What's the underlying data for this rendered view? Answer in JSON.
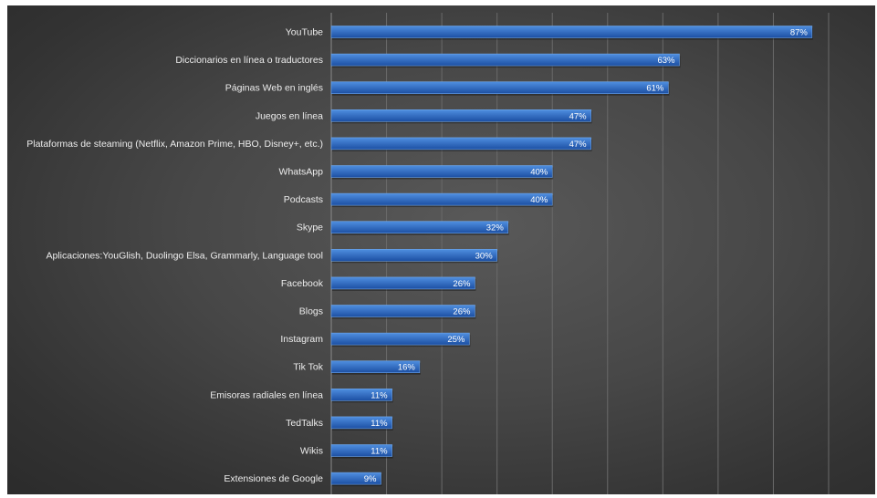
{
  "chart_data": {
    "type": "bar",
    "orientation": "horizontal",
    "categories": [
      "YouTube",
      "Diccionarios en línea o traductores",
      "Páginas Web en inglés",
      "Juegos en línea",
      "Plataformas de steaming (Netflix, Amazon Prime, HBO, Disney+, etc.)",
      "WhatsApp",
      "Podcasts",
      "Skype",
      "Aplicaciones:YouGlish, Duolingo Elsa, Grammarly, Language tool",
      "Facebook",
      "Blogs",
      "Instagram",
      "Tik Tok",
      "Emisoras radiales en línea",
      "TedTalks",
      "Wikis",
      "Extensiones de Google"
    ],
    "values": [
      87,
      63,
      61,
      47,
      47,
      40,
      40,
      32,
      30,
      26,
      26,
      25,
      16,
      11,
      11,
      11,
      9
    ],
    "value_labels": [
      "87%",
      "63%",
      "61%",
      "47%",
      "47%",
      "40%",
      "40%",
      "32%",
      "30%",
      "26%",
      "26%",
      "25%",
      "16%",
      "11%",
      "11%",
      "11%",
      "9%"
    ],
    "xlim": [
      0,
      90
    ],
    "grid": true,
    "legend": "none",
    "colors": {
      "bar_top": "#4f8fe0",
      "bar_bottom": "#1c4fa3",
      "background_center": "#595959",
      "background_edge": "#2b2b2b",
      "gridline": "#6a6a6a",
      "text": "#ededed"
    }
  }
}
